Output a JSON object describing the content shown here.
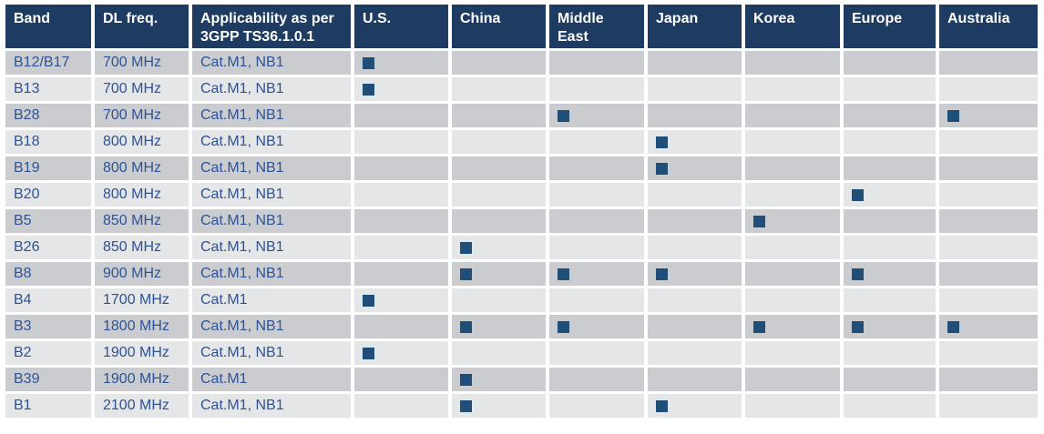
{
  "colors": {
    "header_bg": "#1e3c62",
    "header_text": "#ffffff",
    "row_stripe_dark": "#cbccd0",
    "row_stripe_light": "#e5e6e8",
    "body_text": "#2e5394",
    "marker": "#1f4e79",
    "canvas": "#ffffff"
  },
  "table": {
    "columns": [
      {
        "key": "band",
        "label": "Band",
        "type": "text"
      },
      {
        "key": "freq",
        "label": "DL freq.",
        "type": "text"
      },
      {
        "key": "applicability",
        "label": "Applicability as per 3GPP TS36.1.0.1",
        "type": "text"
      },
      {
        "key": "us",
        "label": "U.S.",
        "type": "region"
      },
      {
        "key": "china",
        "label": "China",
        "type": "region"
      },
      {
        "key": "middle_east",
        "label": "Middle East",
        "type": "region"
      },
      {
        "key": "japan",
        "label": "Japan",
        "type": "region"
      },
      {
        "key": "korea",
        "label": "Korea",
        "type": "region"
      },
      {
        "key": "europe",
        "label": "Europe",
        "type": "region"
      },
      {
        "key": "australia",
        "label": "Australia",
        "type": "region"
      }
    ],
    "marker_icon": "filled-square",
    "rows": [
      {
        "band": "B12/B17",
        "freq": "700 MHz",
        "applicability": "Cat.M1, NB1",
        "regions": [
          "us"
        ]
      },
      {
        "band": "B13",
        "freq": "700 MHz",
        "applicability": "Cat.M1, NB1",
        "regions": [
          "us"
        ]
      },
      {
        "band": "B28",
        "freq": "700 MHz",
        "applicability": "Cat.M1, NB1",
        "regions": [
          "middle_east",
          "australia"
        ]
      },
      {
        "band": "B18",
        "freq": "800 MHz",
        "applicability": "Cat.M1, NB1",
        "regions": [
          "japan"
        ]
      },
      {
        "band": "B19",
        "freq": "800 MHz",
        "applicability": "Cat.M1, NB1",
        "regions": [
          "japan"
        ]
      },
      {
        "band": "B20",
        "freq": "800 MHz",
        "applicability": "Cat.M1, NB1",
        "regions": [
          "europe"
        ]
      },
      {
        "band": "B5",
        "freq": "850 MHz",
        "applicability": "Cat.M1, NB1",
        "regions": [
          "korea"
        ]
      },
      {
        "band": "B26",
        "freq": "850 MHz",
        "applicability": "Cat.M1, NB1",
        "regions": [
          "china"
        ]
      },
      {
        "band": "B8",
        "freq": "900 MHz",
        "applicability": "Cat.M1, NB1",
        "regions": [
          "china",
          "middle_east",
          "japan",
          "europe"
        ]
      },
      {
        "band": "B4",
        "freq": "1700 MHz",
        "applicability": "Cat.M1",
        "regions": [
          "us"
        ]
      },
      {
        "band": "B3",
        "freq": "1800 MHz",
        "applicability": "Cat.M1, NB1",
        "regions": [
          "china",
          "middle_east",
          "korea",
          "europe",
          "australia"
        ]
      },
      {
        "band": "B2",
        "freq": "1900 MHz",
        "applicability": "Cat.M1, NB1",
        "regions": [
          "us"
        ]
      },
      {
        "band": "B39",
        "freq": "1900 MHz",
        "applicability": "Cat.M1",
        "regions": [
          "china"
        ]
      },
      {
        "band": "B1",
        "freq": "2100 MHz",
        "applicability": "Cat.M1, NB1",
        "regions": [
          "china",
          "japan"
        ]
      }
    ]
  }
}
